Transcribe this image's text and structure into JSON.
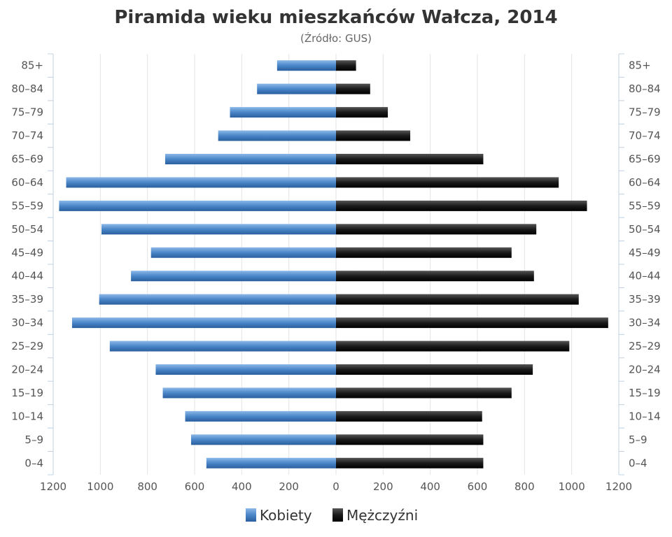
{
  "chart_data": {
    "type": "bar",
    "orientation": "horizontal-pyramid",
    "title": "Piramida wieku mieszkańców Wałcza, 2014",
    "subtitle": "(Źródło: GUS)",
    "categories": [
      "85+",
      "80–84",
      "75–79",
      "70–74",
      "65–69",
      "60–64",
      "55–59",
      "50–54",
      "45–49",
      "40–44",
      "35–39",
      "30–34",
      "25–29",
      "20–24",
      "15–19",
      "10–14",
      "5–9",
      "0–4"
    ],
    "series": [
      {
        "name": "Kobiety",
        "color": "#4a86c8",
        "values": [
          250,
          335,
          450,
          500,
          725,
          1145,
          1175,
          995,
          785,
          870,
          1005,
          1120,
          960,
          765,
          735,
          640,
          615,
          550
        ]
      },
      {
        "name": "Mężczyźni",
        "color": "#1a1a1a",
        "values": [
          85,
          145,
          220,
          315,
          625,
          945,
          1065,
          850,
          745,
          840,
          1030,
          1155,
          990,
          835,
          745,
          620,
          625,
          625
        ]
      }
    ],
    "xlim": [
      -1200,
      1200
    ],
    "x_ticks": [
      -1200,
      -1000,
      -800,
      -600,
      -400,
      -200,
      0,
      200,
      400,
      600,
      800,
      1000,
      1200
    ],
    "x_tick_labels": [
      "1200",
      "1000",
      "800",
      "600",
      "400",
      "200",
      "0",
      "200",
      "400",
      "600",
      "800",
      "1000",
      "1200"
    ],
    "grid": true,
    "legend_position": "bottom-center"
  }
}
